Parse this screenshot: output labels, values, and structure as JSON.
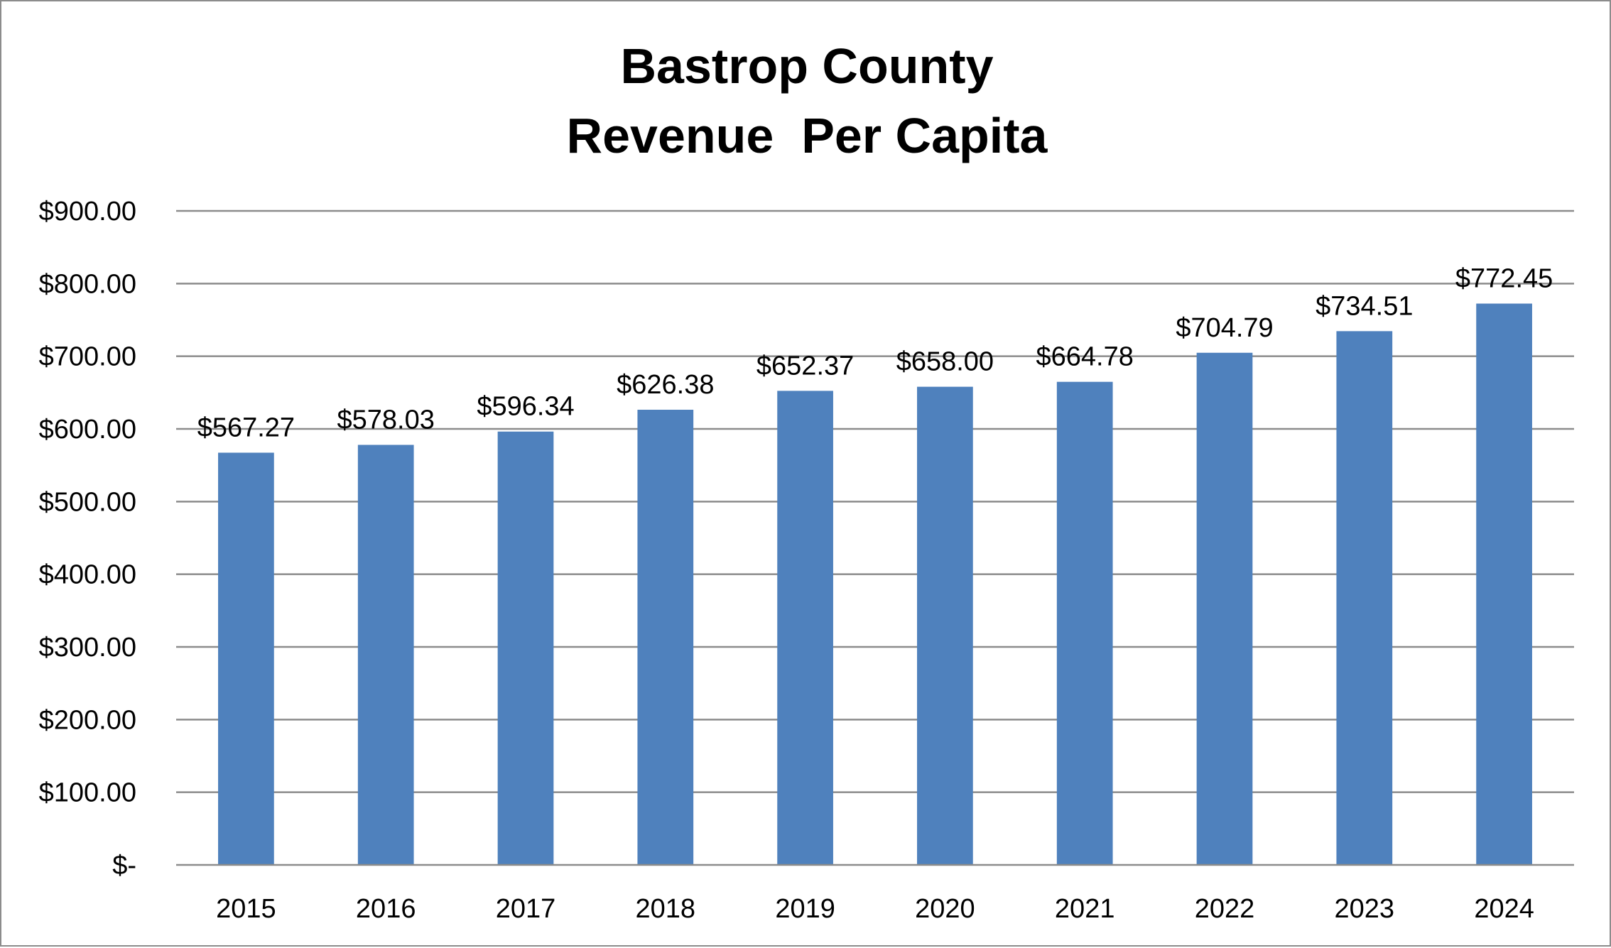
{
  "chart_data": {
    "type": "bar",
    "title": [
      "Bastrop County",
      "Revenue  Per Capita"
    ],
    "xlabel": "",
    "ylabel": "",
    "categories": [
      "2015",
      "2016",
      "2017",
      "2018",
      "2019",
      "2020",
      "2021",
      "2022",
      "2023",
      "2024"
    ],
    "values": [
      567.27,
      578.03,
      596.34,
      626.38,
      652.37,
      658.0,
      664.78,
      704.79,
      734.51,
      772.45
    ],
    "data_labels": [
      "$567.27",
      "$578.03",
      "$596.34",
      "$626.38",
      "$652.37",
      "$658.00",
      "$664.78",
      "$704.79",
      "$734.51",
      "$772.45"
    ],
    "ylim": [
      0,
      900
    ],
    "yticks": [
      0,
      100,
      200,
      300,
      400,
      500,
      600,
      700,
      800,
      900
    ],
    "ytick_labels": [
      "$-",
      "$100.00",
      "$200.00",
      "$300.00",
      "$400.00",
      "$500.00",
      "$600.00",
      "$700.00",
      "$800.00",
      "$900.00"
    ],
    "grid": true,
    "legend": "none",
    "bar_color": "#4f81bd",
    "grid_color": "#8c8c8c"
  }
}
